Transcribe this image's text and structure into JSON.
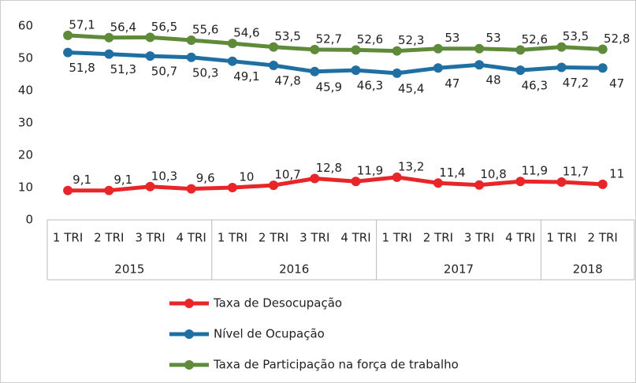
{
  "chart_data": {
    "type": "line",
    "category_groups": [
      {
        "label": "2015",
        "categories": [
          "1 TRI",
          "2 TRI",
          "3 TRI",
          "4 TRI"
        ]
      },
      {
        "label": "2016",
        "categories": [
          "1 TRI",
          "2 TRI",
          "3 TRI",
          "4 TRI"
        ]
      },
      {
        "label": "2017",
        "categories": [
          "1 TRI",
          "2 TRI",
          "3 TRI",
          "4 TRI"
        ]
      },
      {
        "label": "2018",
        "categories": [
          "1 TRI",
          "2 TRI"
        ]
      }
    ],
    "series": [
      {
        "name": "Taxa de Desocupação",
        "color": "#e8262a",
        "values": [
          9.1,
          9.1,
          10.3,
          9.6,
          10,
          10.7,
          12.8,
          11.9,
          13.2,
          11.4,
          10.8,
          11.9,
          11.7,
          11
        ],
        "value_labels": [
          "9,1",
          "9,1",
          "10,3",
          "9,6",
          "10",
          "10,7",
          "12,8",
          "11,9",
          "13,2",
          "11,4",
          "10,8",
          "11,9",
          "11,7",
          "11"
        ]
      },
      {
        "name": "Nível de Ocupação",
        "color": "#1f6fa3",
        "values": [
          51.8,
          51.3,
          50.7,
          50.3,
          49.1,
          47.8,
          45.9,
          46.3,
          45.4,
          47,
          48,
          46.3,
          47.2,
          47
        ],
        "value_labels": [
          "51,8",
          "51,3",
          "50,7",
          "50,3",
          "49,1",
          "47,8",
          "45,9",
          "46,3",
          "45,4",
          "47",
          "48",
          "46,3",
          "47,2",
          "47"
        ]
      },
      {
        "name": "Taxa de Participação na força de trabalho",
        "color": "#5e8a3a",
        "values": [
          57.1,
          56.4,
          56.5,
          55.6,
          54.6,
          53.5,
          52.7,
          52.6,
          52.3,
          53,
          53,
          52.6,
          53.5,
          52.8
        ],
        "value_labels": [
          "57,1",
          "56,4",
          "56,5",
          "55,6",
          "54,6",
          "53,5",
          "52,7",
          "52,6",
          "52,3",
          "53",
          "53",
          "52,6",
          "53,5",
          "52,8"
        ]
      }
    ],
    "ylim": [
      0,
      60
    ],
    "yticks": [
      0,
      10,
      20,
      30,
      40,
      50,
      60
    ],
    "grid": false
  }
}
